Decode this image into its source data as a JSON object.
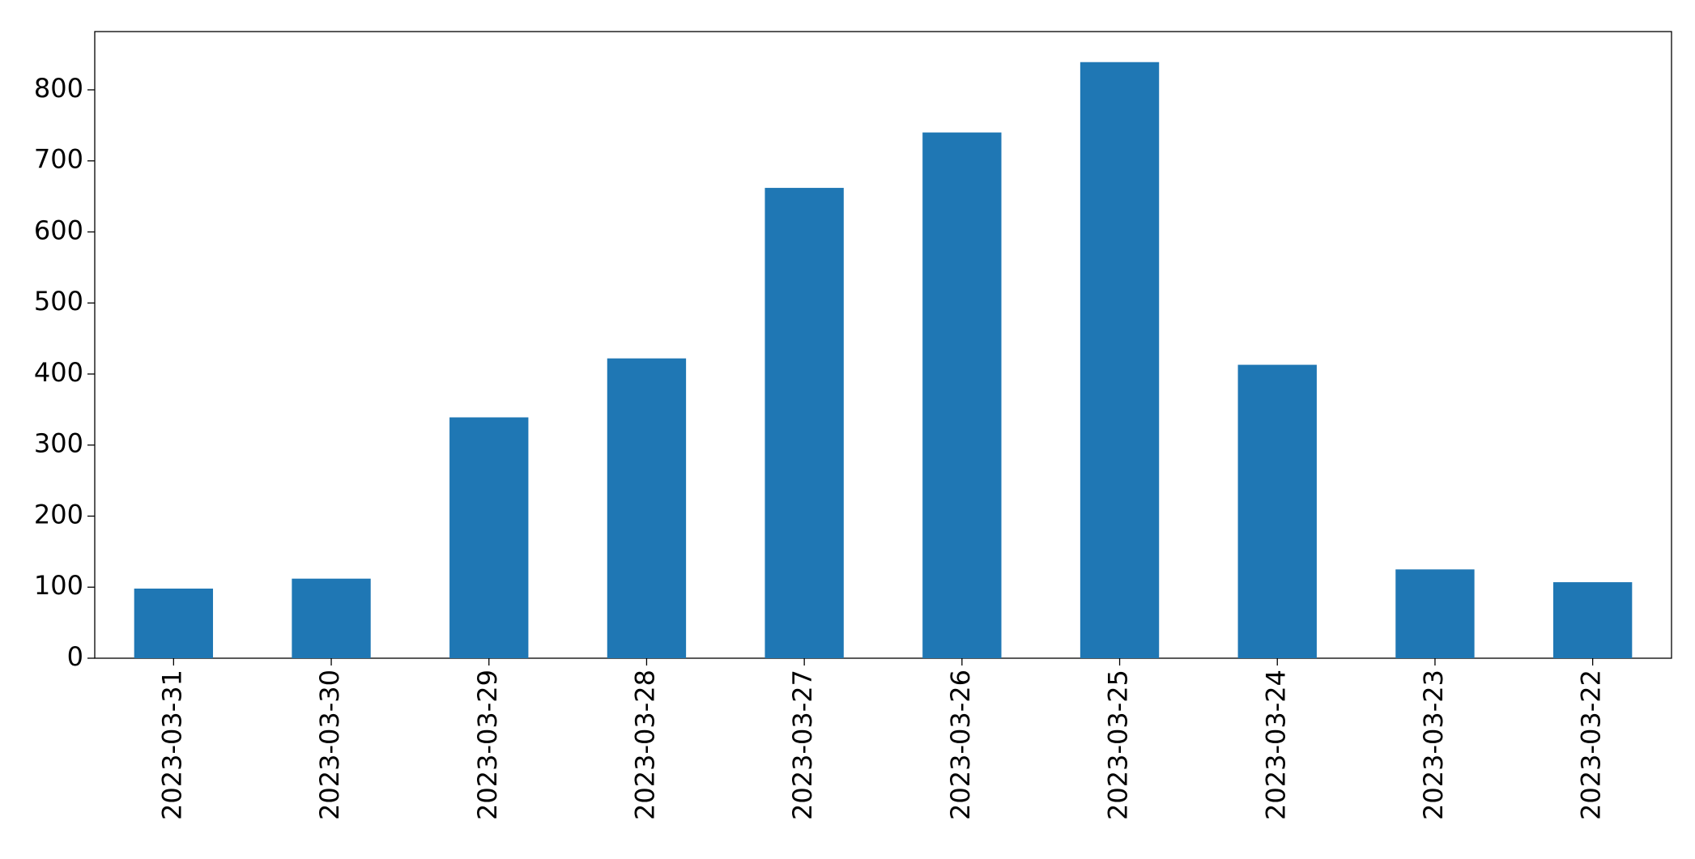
{
  "chart_data": {
    "type": "bar",
    "categories": [
      "2023-03-31",
      "2023-03-30",
      "2023-03-29",
      "2023-03-28",
      "2023-03-27",
      "2023-03-26",
      "2023-03-25",
      "2023-03-24",
      "2023-03-23",
      "2023-03-22"
    ],
    "values": [
      98,
      112,
      339,
      422,
      662,
      740,
      839,
      413,
      125,
      107
    ],
    "color": "#1f77b4",
    "ylim": [
      0,
      882
    ],
    "yticks": [
      0,
      100,
      200,
      300,
      400,
      500,
      600,
      700,
      800
    ],
    "grid": false
  }
}
